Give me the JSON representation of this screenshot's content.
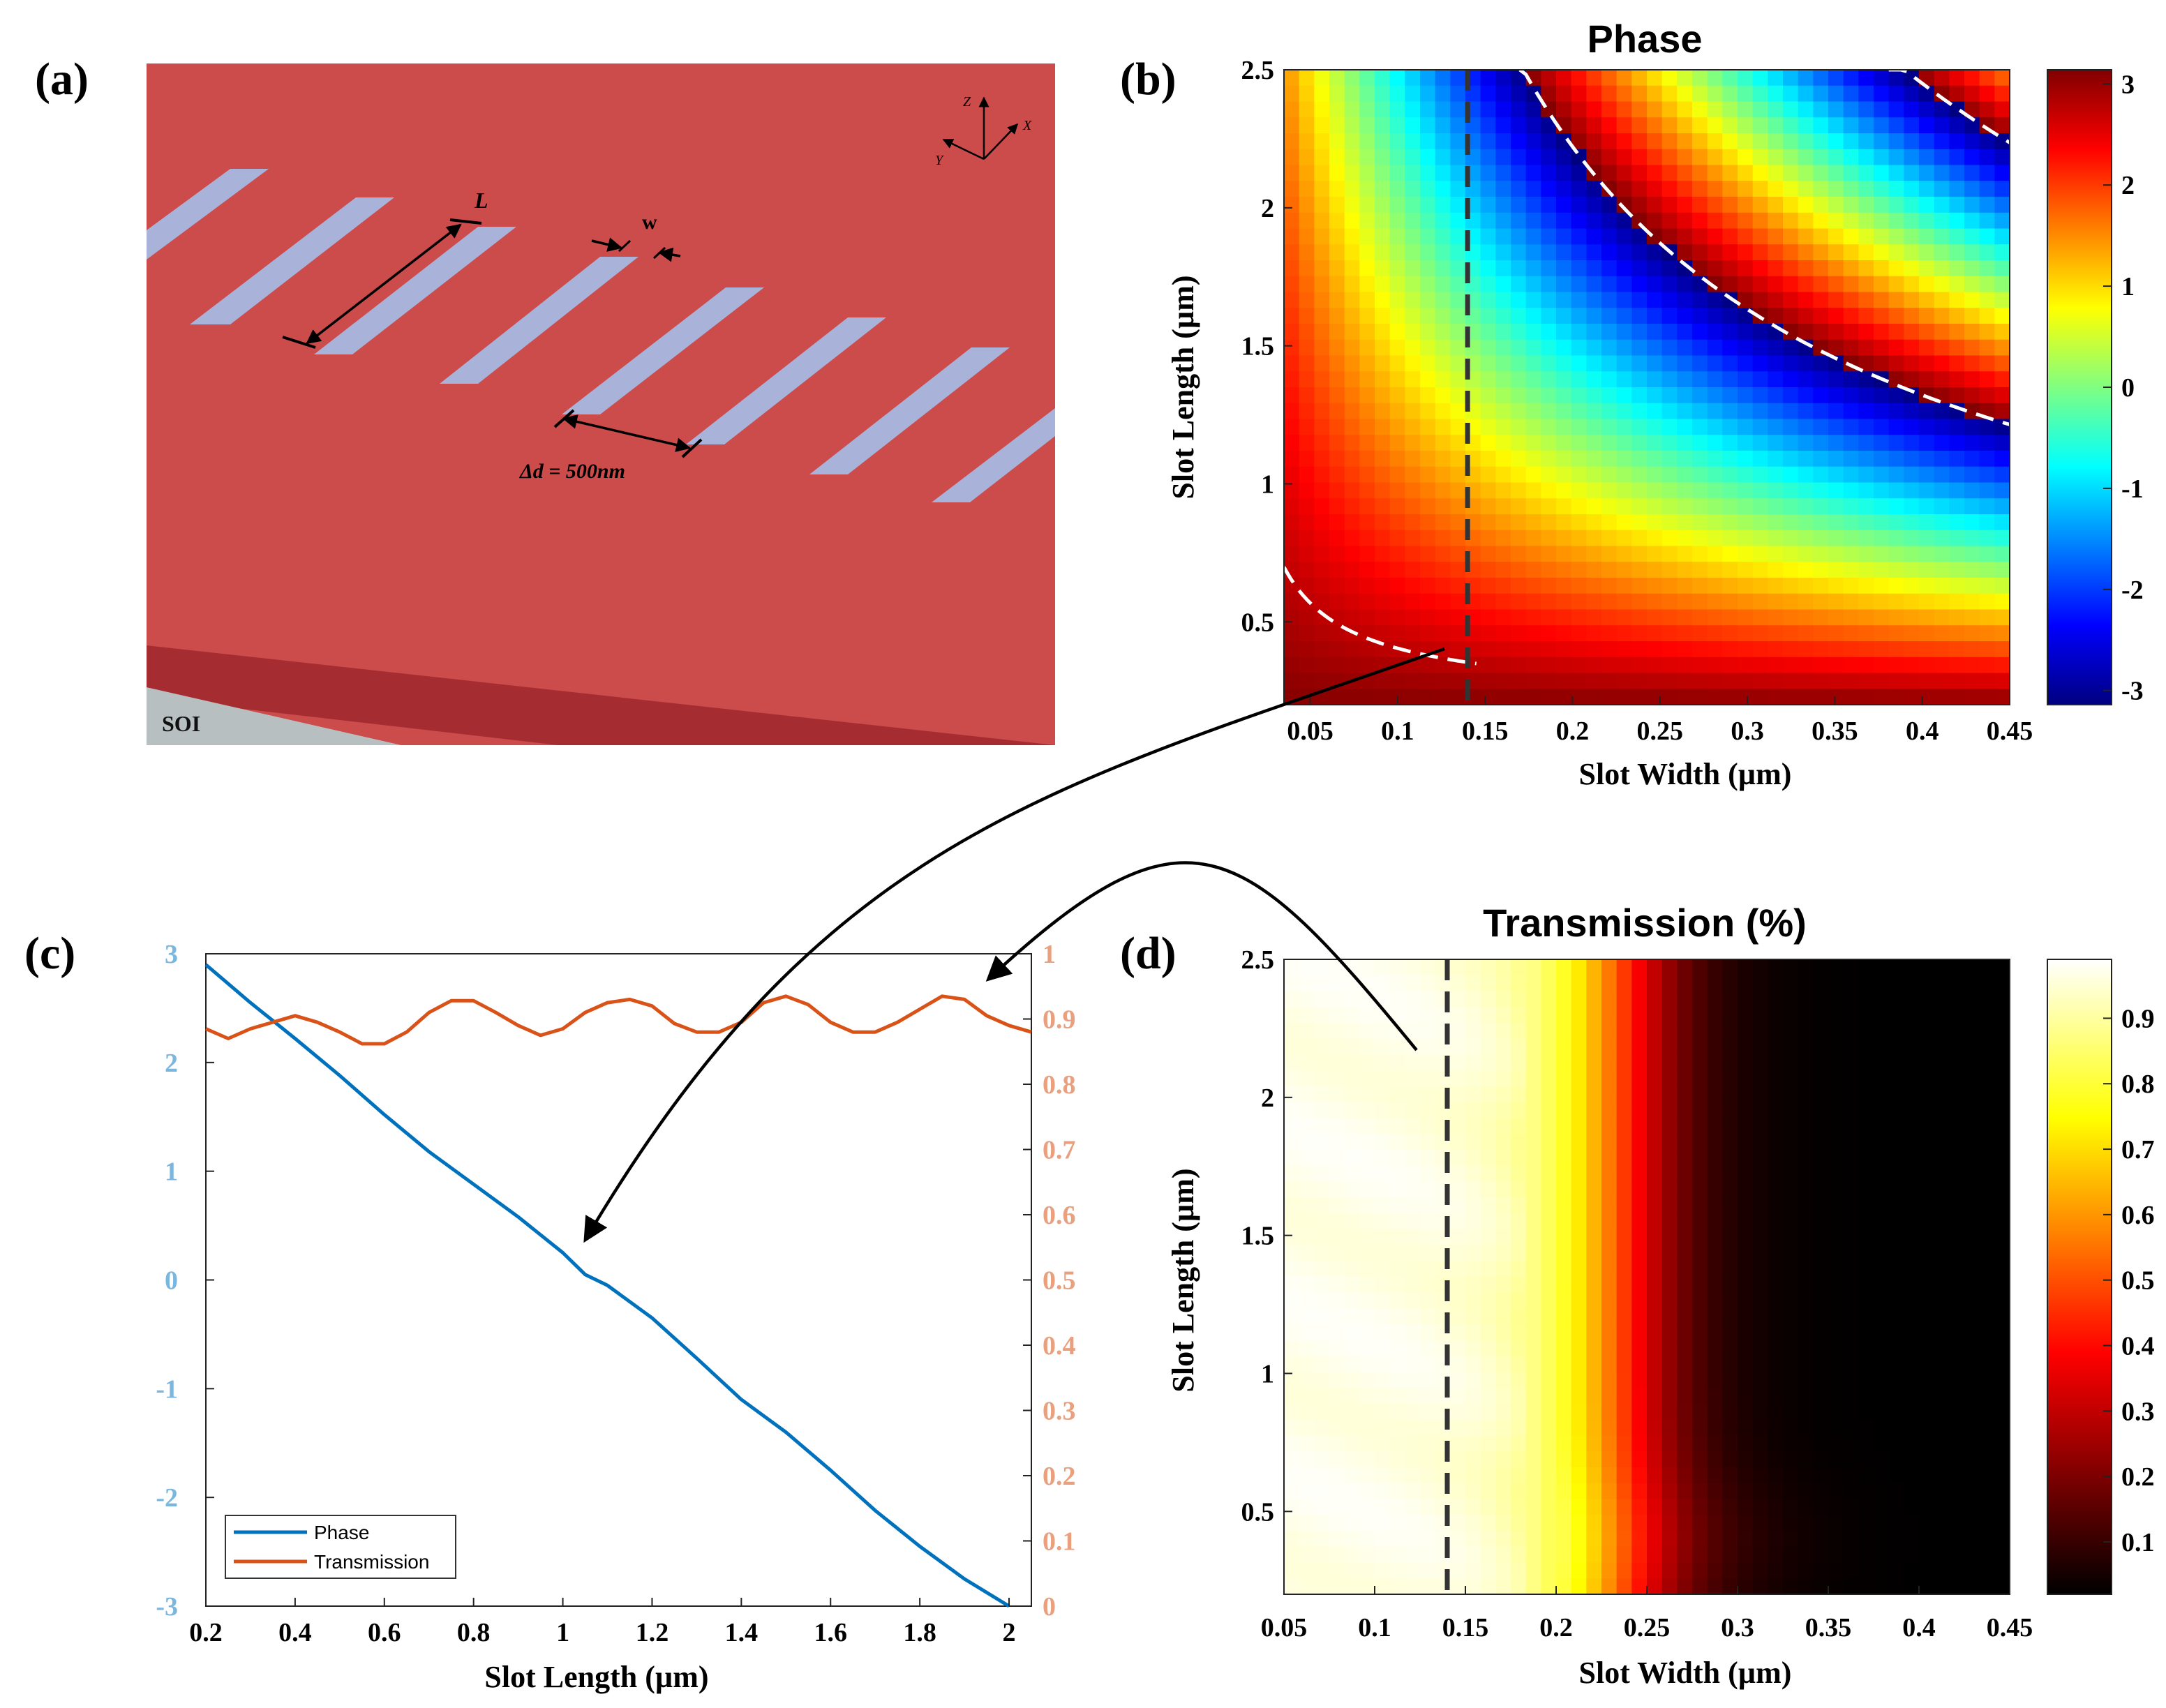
{
  "panel_labels": {
    "a": "(a)",
    "b": "(b)",
    "c": "(c)",
    "d": "(d)"
  },
  "schematic": {
    "substrate_label": "SOI",
    "dim_L": "L",
    "dim_w": "w",
    "dim_spacing": "Δd = 500nm",
    "axes": {
      "z": "Z",
      "x": "X",
      "y": "Y"
    },
    "colors": {
      "metal": "#CC4B4B",
      "metal_edge": "#A52C31",
      "slot": "#A9B2D9",
      "substrate": "#B8BFC0"
    }
  },
  "chart_data": [
    {
      "id": "b",
      "type": "heatmap",
      "title": "Phase",
      "xlabel": "Slot Width (µm)",
      "ylabel": "Slot Length (µm)",
      "xlim": [
        0.035,
        0.45
      ],
      "ylim": [
        0.2,
        2.5
      ],
      "xticks": [
        "0.05",
        "0.1",
        "0.15",
        "0.2",
        "0.25",
        "0.3",
        "0.35",
        "0.4",
        "0.45"
      ],
      "xtick_values": [
        0.05,
        0.1,
        0.15,
        0.2,
        0.25,
        0.3,
        0.35,
        0.4,
        0.45
      ],
      "yticks": [
        "0.5",
        "1",
        "1.5",
        "2",
        "2.5"
      ],
      "ytick_values": [
        0.5,
        1,
        1.5,
        2,
        2.5
      ],
      "colorbar": {
        "min": -3.14,
        "max": 3.14,
        "ticks": [
          "3",
          "2",
          "1",
          "0",
          "-1",
          "-2",
          "-3"
        ],
        "tick_values": [
          3,
          2,
          1,
          0,
          -1,
          -2,
          -3
        ],
        "colormap": "jet"
      },
      "selected_width": 0.14,
      "wrap_contours": "dashed white lines where phase wraps from -π to π"
    },
    {
      "id": "c",
      "type": "line",
      "xlabel": "Slot Length (µm)",
      "xlim": [
        0.2,
        2.05
      ],
      "xticks": [
        "0.2",
        "0.4",
        "0.6",
        "0.8",
        "1",
        "1.2",
        "1.4",
        "1.6",
        "1.8",
        "2"
      ],
      "xtick_values": [
        0.2,
        0.4,
        0.6,
        0.8,
        1,
        1.2,
        1.4,
        1.6,
        1.8,
        2
      ],
      "ylim_left": [
        -3,
        3
      ],
      "yticks_left": [
        "3",
        "2",
        "1",
        "0",
        "-1",
        "-2",
        "-3"
      ],
      "ytick_values_left": [
        3,
        2,
        1,
        0,
        -1,
        -2,
        -3
      ],
      "ylim_right": [
        0,
        1
      ],
      "yticks_right": [
        "1",
        "0.9",
        "0.8",
        "0.7",
        "0.6",
        "0.5",
        "0.4",
        "0.3",
        "0.2",
        "0.1",
        "0"
      ],
      "ytick_values_right": [
        1,
        0.9,
        0.8,
        0.7,
        0.6,
        0.5,
        0.4,
        0.3,
        0.2,
        0.1,
        0
      ],
      "series": [
        {
          "name": "Phase",
          "axis": "left",
          "color": "#0072BD",
          "x": [
            0.2,
            0.3,
            0.4,
            0.5,
            0.6,
            0.7,
            0.8,
            0.9,
            1.0,
            1.05,
            1.1,
            1.2,
            1.3,
            1.4,
            1.5,
            1.6,
            1.7,
            1.8,
            1.9,
            2.0
          ],
          "y": [
            2.9,
            2.55,
            2.22,
            1.88,
            1.52,
            1.18,
            0.88,
            0.58,
            0.25,
            0.05,
            -0.05,
            -0.35,
            -0.72,
            -1.1,
            -1.4,
            -1.75,
            -2.12,
            -2.45,
            -2.75,
            -3.0
          ]
        },
        {
          "name": "Transmission",
          "axis": "right",
          "color": "#D95319",
          "x": [
            0.2,
            0.25,
            0.3,
            0.4,
            0.45,
            0.5,
            0.55,
            0.6,
            0.65,
            0.7,
            0.75,
            0.8,
            0.85,
            0.9,
            0.95,
            1.0,
            1.05,
            1.1,
            1.15,
            1.2,
            1.25,
            1.3,
            1.35,
            1.4,
            1.45,
            1.5,
            1.55,
            1.6,
            1.65,
            1.7,
            1.75,
            1.8,
            1.85,
            1.9,
            1.95,
            2.0,
            2.05
          ],
          "y": [
            0.885,
            0.87,
            0.885,
            0.905,
            0.895,
            0.88,
            0.862,
            0.862,
            0.88,
            0.91,
            0.928,
            0.928,
            0.91,
            0.89,
            0.875,
            0.885,
            0.91,
            0.925,
            0.93,
            0.92,
            0.893,
            0.88,
            0.88,
            0.895,
            0.925,
            0.935,
            0.922,
            0.895,
            0.88,
            0.88,
            0.895,
            0.915,
            0.935,
            0.93,
            0.905,
            0.89,
            0.88
          ]
        }
      ],
      "legend": "bottom-left"
    },
    {
      "id": "d",
      "type": "heatmap",
      "title": "Transmission (%)",
      "xlabel": "Slot Width (µm)",
      "ylabel": "Slot Length (µm)",
      "xlim": [
        0.05,
        0.45
      ],
      "ylim": [
        0.2,
        2.5
      ],
      "xticks": [
        "0.05",
        "0.1",
        "0.15",
        "0.2",
        "0.25",
        "0.3",
        "0.35",
        "0.4",
        "0.45"
      ],
      "xtick_values": [
        0.05,
        0.1,
        0.15,
        0.2,
        0.25,
        0.3,
        0.35,
        0.4,
        0.45
      ],
      "yticks": [
        "0.5",
        "1",
        "1.5",
        "2",
        "2.5"
      ],
      "ytick_values": [
        0.5,
        1,
        1.5,
        2,
        2.5
      ],
      "colorbar": {
        "min": 0.02,
        "max": 0.99,
        "ticks": [
          "0.9",
          "0.8",
          "0.7",
          "0.6",
          "0.5",
          "0.4",
          "0.3",
          "0.2",
          "0.1"
        ],
        "tick_values": [
          0.9,
          0.8,
          0.7,
          0.6,
          0.5,
          0.4,
          0.3,
          0.2,
          0.1
        ],
        "colormap": "hot"
      },
      "selected_width": 0.14
    }
  ]
}
